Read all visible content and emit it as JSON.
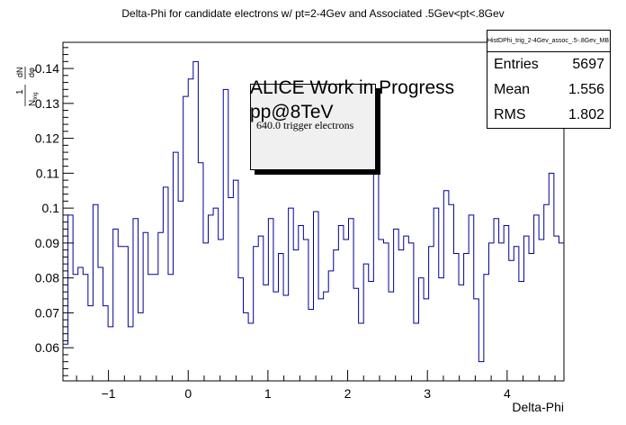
{
  "chart_data": {
    "type": "histogram",
    "title": "Delta-Phi for candidate electrons w/ pt=2-4Gev and Associated .5Gev<pt<.8Gev",
    "xlabel": "Delta-Phi",
    "ylabel_num": "1",
    "ylabel_sub": "N",
    "ylabel_sub_sub": "trig",
    "ylabel_dn": "dN",
    "ylabel_dphi": "dφ",
    "xlim": [
      -1.5708,
      4.7124
    ],
    "ylim": [
      0.0505,
      0.1475
    ],
    "xticks": [
      -1,
      0,
      1,
      2,
      3,
      4
    ],
    "xtick_labels": [
      "−1",
      "0",
      "1",
      "2",
      "3",
      "4"
    ],
    "yticks": [
      0.06,
      0.07,
      0.08,
      0.09,
      0.1,
      0.11,
      0.12,
      0.13,
      0.14
    ],
    "ytick_labels": [
      "0.06",
      "0.07",
      "0.08",
      "0.09",
      "0.1",
      "0.11",
      "0.12",
      "0.13",
      "0.14"
    ],
    "bins": 100,
    "values": [
      0.061,
      0.098,
      0.081,
      0.083,
      0.081,
      0.072,
      0.101,
      0.083,
      0.072,
      0.066,
      0.094,
      0.089,
      0.089,
      0.066,
      0.097,
      0.07,
      0.093,
      0.081,
      0.081,
      0.093,
      0.106,
      0.081,
      0.116,
      0.102,
      0.132,
      0.137,
      0.142,
      0.113,
      0.09,
      0.098,
      0.1,
      0.091,
      0.134,
      0.103,
      0.108,
      0.08,
      0.07,
      0.067,
      0.089,
      0.092,
      0.078,
      0.097,
      0.076,
      0.087,
      0.075,
      0.1,
      0.088,
      0.095,
      0.091,
      0.071,
      0.099,
      0.074,
      0.076,
      0.082,
      0.088,
      0.095,
      0.091,
      0.097,
      0.077,
      0.067,
      0.084,
      0.079,
      0.111,
      0.091,
      0.09,
      0.076,
      0.094,
      0.088,
      0.092,
      0.09,
      0.067,
      0.08,
      0.074,
      0.089,
      0.1,
      0.08,
      0.105,
      0.101,
      0.087,
      0.078,
      0.087,
      0.098,
      0.074,
      0.056,
      0.081,
      0.09,
      0.097,
      0.09,
      0.095,
      0.085,
      0.089,
      0.079,
      0.092,
      0.087,
      0.098,
      0.091,
      0.101,
      0.11,
      0.092,
      0.09
    ],
    "line_color": "#000099",
    "legend_placement": "top-right"
  },
  "stats": {
    "hist_name": "HistDPhi_trig_2-4Gev_assoc_.5-.8Gev_MB",
    "entries_label": "Entries",
    "entries_value": "5697",
    "mean_label": "Mean",
    "mean_value": "1.556",
    "rms_label": "RMS",
    "rms_value": "1.802"
  },
  "annotations": {
    "alice_line1": "ALICE Work in Progress",
    "alice_line2": "pp@8TeV",
    "trigger_text": "640.0 trigger electrons"
  }
}
